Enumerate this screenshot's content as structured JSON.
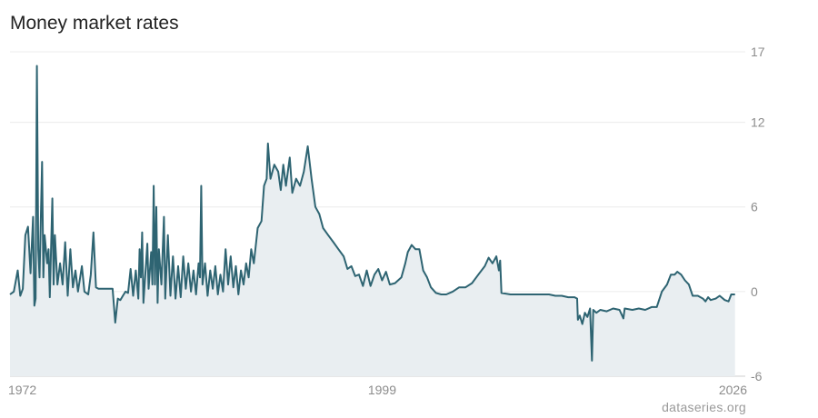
{
  "title": "Money market rates",
  "source": "dataseries.org",
  "colors": {
    "line": "#2e6472",
    "area": "#e9eef1",
    "grid": "#ececec",
    "axis": "#cfcfcf"
  },
  "chart_data": {
    "type": "area",
    "title": "Money market rates",
    "xlabel": "",
    "ylabel": "",
    "xlim": [
      1970.0,
      2027.3
    ],
    "ylim": [
      -6,
      17
    ],
    "yticks": [
      "17",
      "12",
      "6",
      "0",
      "-6"
    ],
    "ytick_values": [
      17,
      12,
      6,
      0,
      -6
    ],
    "xticks": [
      "1972",
      "1999",
      "2026"
    ],
    "xtick_values": [
      1972,
      1999,
      2026
    ],
    "grid": true,
    "legend": "none",
    "series": [
      {
        "values": [
          [
            1970.0,
            -0.2
          ],
          [
            1970.3,
            0.0
          ],
          [
            1970.6,
            1.5
          ],
          [
            1970.8,
            -0.3
          ],
          [
            1971.0,
            0.2
          ],
          [
            1971.2,
            4.0
          ],
          [
            1971.4,
            4.6
          ],
          [
            1971.6,
            1.3
          ],
          [
            1971.8,
            5.3
          ],
          [
            1971.9,
            -1.0
          ],
          [
            1972.0,
            -0.5
          ],
          [
            1972.1,
            16.0
          ],
          [
            1972.2,
            3.0
          ],
          [
            1972.3,
            1.0
          ],
          [
            1972.5,
            9.2
          ],
          [
            1972.6,
            1.0
          ],
          [
            1972.7,
            4.0
          ],
          [
            1972.9,
            2.0
          ],
          [
            1973.0,
            3.0
          ],
          [
            1973.1,
            -0.4
          ],
          [
            1973.3,
            6.6
          ],
          [
            1973.4,
            0.5
          ],
          [
            1973.5,
            4.0
          ],
          [
            1973.7,
            0.5
          ],
          [
            1973.9,
            2.0
          ],
          [
            1974.1,
            0.5
          ],
          [
            1974.3,
            3.5
          ],
          [
            1974.5,
            -0.3
          ],
          [
            1974.7,
            3.0
          ],
          [
            1974.9,
            0.3
          ],
          [
            1975.1,
            1.5
          ],
          [
            1975.3,
            0.0
          ],
          [
            1975.6,
            1.8
          ],
          [
            1975.8,
            0.0
          ],
          [
            1976.1,
            -0.2
          ],
          [
            1976.3,
            1.2
          ],
          [
            1976.5,
            4.2
          ],
          [
            1976.7,
            0.3
          ],
          [
            1976.9,
            0.2
          ],
          [
            1977.2,
            0.2
          ],
          [
            1977.6,
            0.2
          ],
          [
            1978.0,
            0.2
          ],
          [
            1978.2,
            -2.2
          ],
          [
            1978.4,
            -0.5
          ],
          [
            1978.6,
            -0.6
          ],
          [
            1978.8,
            -0.3
          ],
          [
            1979.0,
            0.0
          ],
          [
            1979.2,
            -0.1
          ],
          [
            1979.4,
            1.6
          ],
          [
            1979.6,
            -0.3
          ],
          [
            1979.8,
            1.5
          ],
          [
            1980.0,
            -0.5
          ],
          [
            1980.1,
            3.0
          ],
          [
            1980.2,
            1.0
          ],
          [
            1980.3,
            4.2
          ],
          [
            1980.4,
            -0.8
          ],
          [
            1980.6,
            2.0
          ],
          [
            1980.7,
            3.4
          ],
          [
            1980.8,
            0.2
          ],
          [
            1981.0,
            2.8
          ],
          [
            1981.1,
            0.5
          ],
          [
            1981.2,
            7.5
          ],
          [
            1981.3,
            0.5
          ],
          [
            1981.4,
            6.0
          ],
          [
            1981.5,
            -0.8
          ],
          [
            1981.6,
            3.0
          ],
          [
            1981.8,
            0.5
          ],
          [
            1982.0,
            5.3
          ],
          [
            1982.1,
            -0.5
          ],
          [
            1982.3,
            4.0
          ],
          [
            1982.5,
            -0.3
          ],
          [
            1982.7,
            2.5
          ],
          [
            1982.9,
            -0.5
          ],
          [
            1983.1,
            1.8
          ],
          [
            1983.3,
            -0.4
          ],
          [
            1983.5,
            2.5
          ],
          [
            1983.7,
            0.2
          ],
          [
            1983.9,
            2.0
          ],
          [
            1984.1,
            0.0
          ],
          [
            1984.3,
            1.5
          ],
          [
            1984.5,
            -0.2
          ],
          [
            1984.7,
            2.0
          ],
          [
            1984.8,
            1.0
          ],
          [
            1984.9,
            7.5
          ],
          [
            1985.0,
            0.5
          ],
          [
            1985.2,
            2.0
          ],
          [
            1985.4,
            -0.3
          ],
          [
            1985.6,
            1.5
          ],
          [
            1985.8,
            0.2
          ],
          [
            1986.0,
            1.8
          ],
          [
            1986.2,
            -0.2
          ],
          [
            1986.4,
            1.2
          ],
          [
            1986.6,
            0.0
          ],
          [
            1986.8,
            3.0
          ],
          [
            1987.0,
            0.5
          ],
          [
            1987.2,
            2.5
          ],
          [
            1987.4,
            0.3
          ],
          [
            1987.6,
            1.8
          ],
          [
            1987.8,
            -0.2
          ],
          [
            1988.0,
            1.5
          ],
          [
            1988.2,
            0.5
          ],
          [
            1988.4,
            2.0
          ],
          [
            1988.6,
            1.0
          ],
          [
            1988.8,
            3.0
          ],
          [
            1989.0,
            2.0
          ],
          [
            1989.3,
            4.5
          ],
          [
            1989.6,
            5.0
          ],
          [
            1989.8,
            7.5
          ],
          [
            1990.0,
            8.0
          ],
          [
            1990.1,
            10.5
          ],
          [
            1990.3,
            8.0
          ],
          [
            1990.6,
            9.0
          ],
          [
            1990.9,
            8.5
          ],
          [
            1991.1,
            7.2
          ],
          [
            1991.3,
            9.0
          ],
          [
            1991.5,
            7.5
          ],
          [
            1991.8,
            9.5
          ],
          [
            1992.0,
            7.0
          ],
          [
            1992.3,
            8.0
          ],
          [
            1992.6,
            7.5
          ],
          [
            1992.9,
            8.5
          ],
          [
            1993.2,
            10.3
          ],
          [
            1993.5,
            8.0
          ],
          [
            1993.8,
            6.0
          ],
          [
            1994.1,
            5.5
          ],
          [
            1994.4,
            4.5
          ],
          [
            1994.8,
            4.0
          ],
          [
            1995.2,
            3.5
          ],
          [
            1995.6,
            3.0
          ],
          [
            1996.0,
            2.5
          ],
          [
            1996.3,
            1.6
          ],
          [
            1996.6,
            1.8
          ],
          [
            1996.9,
            1.1
          ],
          [
            1997.2,
            1.2
          ],
          [
            1997.5,
            0.4
          ],
          [
            1997.8,
            1.5
          ],
          [
            1998.1,
            0.4
          ],
          [
            1998.4,
            1.2
          ],
          [
            1998.7,
            1.6
          ],
          [
            1999.0,
            0.8
          ],
          [
            1999.3,
            1.4
          ],
          [
            1999.6,
            0.5
          ],
          [
            2000.0,
            0.6
          ],
          [
            2000.5,
            1.0
          ],
          [
            2000.8,
            2.0
          ],
          [
            2001.0,
            2.8
          ],
          [
            2001.3,
            3.3
          ],
          [
            2001.6,
            3.0
          ],
          [
            2001.9,
            3.0
          ],
          [
            2002.2,
            1.5
          ],
          [
            2002.5,
            1.0
          ],
          [
            2002.8,
            0.3
          ],
          [
            2003.2,
            -0.1
          ],
          [
            2003.6,
            -0.2
          ],
          [
            2004.0,
            -0.2
          ],
          [
            2004.5,
            0.0
          ],
          [
            2005.0,
            0.3
          ],
          [
            2005.5,
            0.3
          ],
          [
            2006.0,
            0.6
          ],
          [
            2006.5,
            1.2
          ],
          [
            2007.0,
            1.8
          ],
          [
            2007.3,
            2.4
          ],
          [
            2007.6,
            2.0
          ],
          [
            2007.9,
            2.5
          ],
          [
            2008.1,
            1.5
          ],
          [
            2008.2,
            2.2
          ],
          [
            2008.3,
            -0.1
          ],
          [
            2009.0,
            -0.2
          ],
          [
            2010.0,
            -0.2
          ],
          [
            2011.0,
            -0.2
          ],
          [
            2012.0,
            -0.2
          ],
          [
            2012.5,
            -0.3
          ],
          [
            2013.0,
            -0.3
          ],
          [
            2013.5,
            -0.4
          ],
          [
            2014.0,
            -0.4
          ],
          [
            2014.2,
            -0.5
          ],
          [
            2014.25,
            -2.0
          ],
          [
            2014.4,
            -1.7
          ],
          [
            2014.6,
            -2.3
          ],
          [
            2014.8,
            -1.5
          ],
          [
            2015.0,
            -1.8
          ],
          [
            2015.2,
            -1.2
          ],
          [
            2015.35,
            -4.9
          ],
          [
            2015.45,
            -1.3
          ],
          [
            2015.7,
            -1.5
          ],
          [
            2016.0,
            -1.3
          ],
          [
            2016.5,
            -1.4
          ],
          [
            2017.0,
            -1.2
          ],
          [
            2017.5,
            -1.3
          ],
          [
            2017.8,
            -1.9
          ],
          [
            2017.9,
            -1.2
          ],
          [
            2018.5,
            -1.3
          ],
          [
            2019.0,
            -1.2
          ],
          [
            2019.5,
            -1.3
          ],
          [
            2020.0,
            -1.1
          ],
          [
            2020.4,
            -1.1
          ],
          [
            2020.8,
            0.0
          ],
          [
            2021.2,
            0.5
          ],
          [
            2021.5,
            1.2
          ],
          [
            2021.8,
            1.2
          ],
          [
            2022.0,
            1.4
          ],
          [
            2022.3,
            1.2
          ],
          [
            2022.6,
            0.8
          ],
          [
            2022.9,
            0.5
          ],
          [
            2023.2,
            -0.3
          ],
          [
            2023.6,
            -0.3
          ],
          [
            2024.0,
            -0.5
          ],
          [
            2024.2,
            -0.7
          ],
          [
            2024.4,
            -0.4
          ],
          [
            2024.6,
            -0.6
          ],
          [
            2025.0,
            -0.5
          ],
          [
            2025.3,
            -0.3
          ],
          [
            2025.7,
            -0.6
          ],
          [
            2026.0,
            -0.7
          ],
          [
            2026.2,
            -0.2
          ],
          [
            2026.5,
            -0.2
          ]
        ]
      }
    ]
  }
}
